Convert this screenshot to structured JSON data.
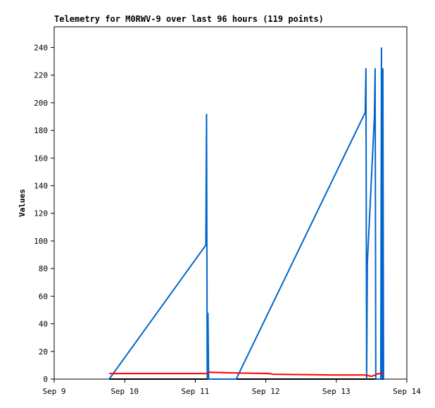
{
  "chart_data": {
    "type": "line",
    "title": "Telemetry for M0RWV-9 over last 96 hours (119 points)",
    "y_label": "Values",
    "xlim": [
      0,
      5
    ],
    "xticks": [
      {
        "value": 0,
        "label": "Sep 9"
      },
      {
        "value": 1,
        "label": "Sep 10"
      },
      {
        "value": 2,
        "label": "Sep 11"
      },
      {
        "value": 3,
        "label": "Sep 12"
      },
      {
        "value": 4,
        "label": "Sep 13"
      },
      {
        "value": 5,
        "label": "Sep 14"
      }
    ],
    "ylim": [
      0,
      255
    ],
    "yticks": [
      0,
      20,
      40,
      60,
      80,
      100,
      120,
      140,
      160,
      180,
      200,
      220,
      240
    ],
    "series": [
      {
        "color": "#000000",
        "x": [
          0.78,
          4.67
        ],
        "values": [
          0,
          0
        ]
      },
      {
        "color": "#0066cc",
        "x": [
          0.78,
          2.15,
          2.16,
          2.17,
          2.18,
          2.19,
          2.58,
          4.41,
          4.42,
          4.43,
          4.44,
          4.54,
          4.55,
          4.56,
          4.63,
          4.64,
          4.65,
          4.66,
          4.67
        ],
        "values": [
          0,
          97,
          192,
          0,
          48,
          0,
          0,
          193,
          225,
          0,
          84,
          190,
          225,
          0,
          0,
          240,
          0,
          225,
          0
        ]
      },
      {
        "color": "#ff0000",
        "x": [
          0.78,
          2.15,
          2.2,
          2.5,
          3.05,
          3.1,
          3.95,
          4.4,
          4.5,
          4.6,
          4.67
        ],
        "values": [
          4,
          4,
          5,
          4.5,
          4,
          3.5,
          3,
          3,
          2,
          4,
          4
        ]
      }
    ]
  }
}
